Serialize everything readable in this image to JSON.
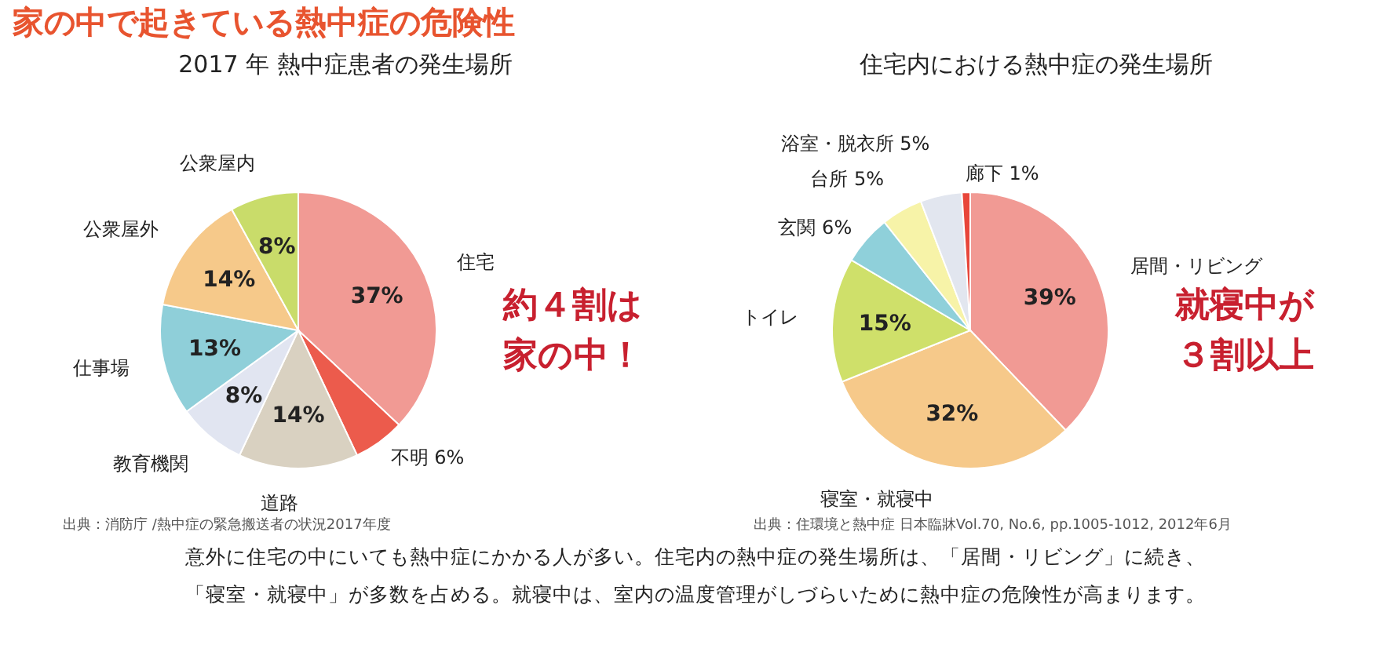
{
  "chart_data": [
    {
      "type": "pie",
      "title": "2017 年 熱中症患者の発生場所",
      "categories": [
        "住宅",
        "不明",
        "道路",
        "教育機関",
        "仕事場",
        "公衆屋外",
        "公衆屋内"
      ],
      "values": [
        37,
        6,
        14,
        8,
        13,
        14,
        8
      ],
      "value_labels": [
        "37%",
        "6%",
        "14%",
        "8%",
        "13%",
        "14%",
        "8%"
      ],
      "colors": [
        "#f19a94",
        "#ec5b4c",
        "#d9d1c1",
        "#e1e5f1",
        "#8fcfd9",
        "#f6c98a",
        "#c9dc6a"
      ],
      "annotations": [
        "家の中で起きている熱中症の危険性",
        "約４割は",
        "家の中！",
        "出典：消防庁 /熱中症の緊急搬送者の状況2017年度"
      ]
    },
    {
      "type": "pie",
      "title": "住宅内における熱中症の発生場所",
      "categories": [
        "居間・リビング",
        "寝室・就寝中",
        "トイレ",
        "玄関",
        "台所",
        "浴室・脱衣所",
        "廊下"
      ],
      "values": [
        39,
        32,
        15,
        6,
        5,
        5,
        1
      ],
      "value_labels": [
        "39%",
        "32%",
        "15%",
        "6%",
        "5%",
        "5%",
        "1%"
      ],
      "colors": [
        "#f19a94",
        "#f6c98a",
        "#cfe06a",
        "#8fd0da",
        "#f7f3a8",
        "#e2e6ef",
        "#e8463a"
      ],
      "annotations": [
        "就寝中が",
        "３割以上",
        "出典：住環境と熱中症 日本臨牀Vol.70, No.6, pp.1005-1012, 2012年6月",
        "意外に住宅の中にいても熱中症にかかる人が多い。住宅内の熱中症の発生場所は、「居間・リビング」に続き、",
        "「寝室・就寝中」が多数を占める。就寝中は、室内の温度管理がしづらいために熱中症の危険性が高まります。"
      ]
    }
  ]
}
